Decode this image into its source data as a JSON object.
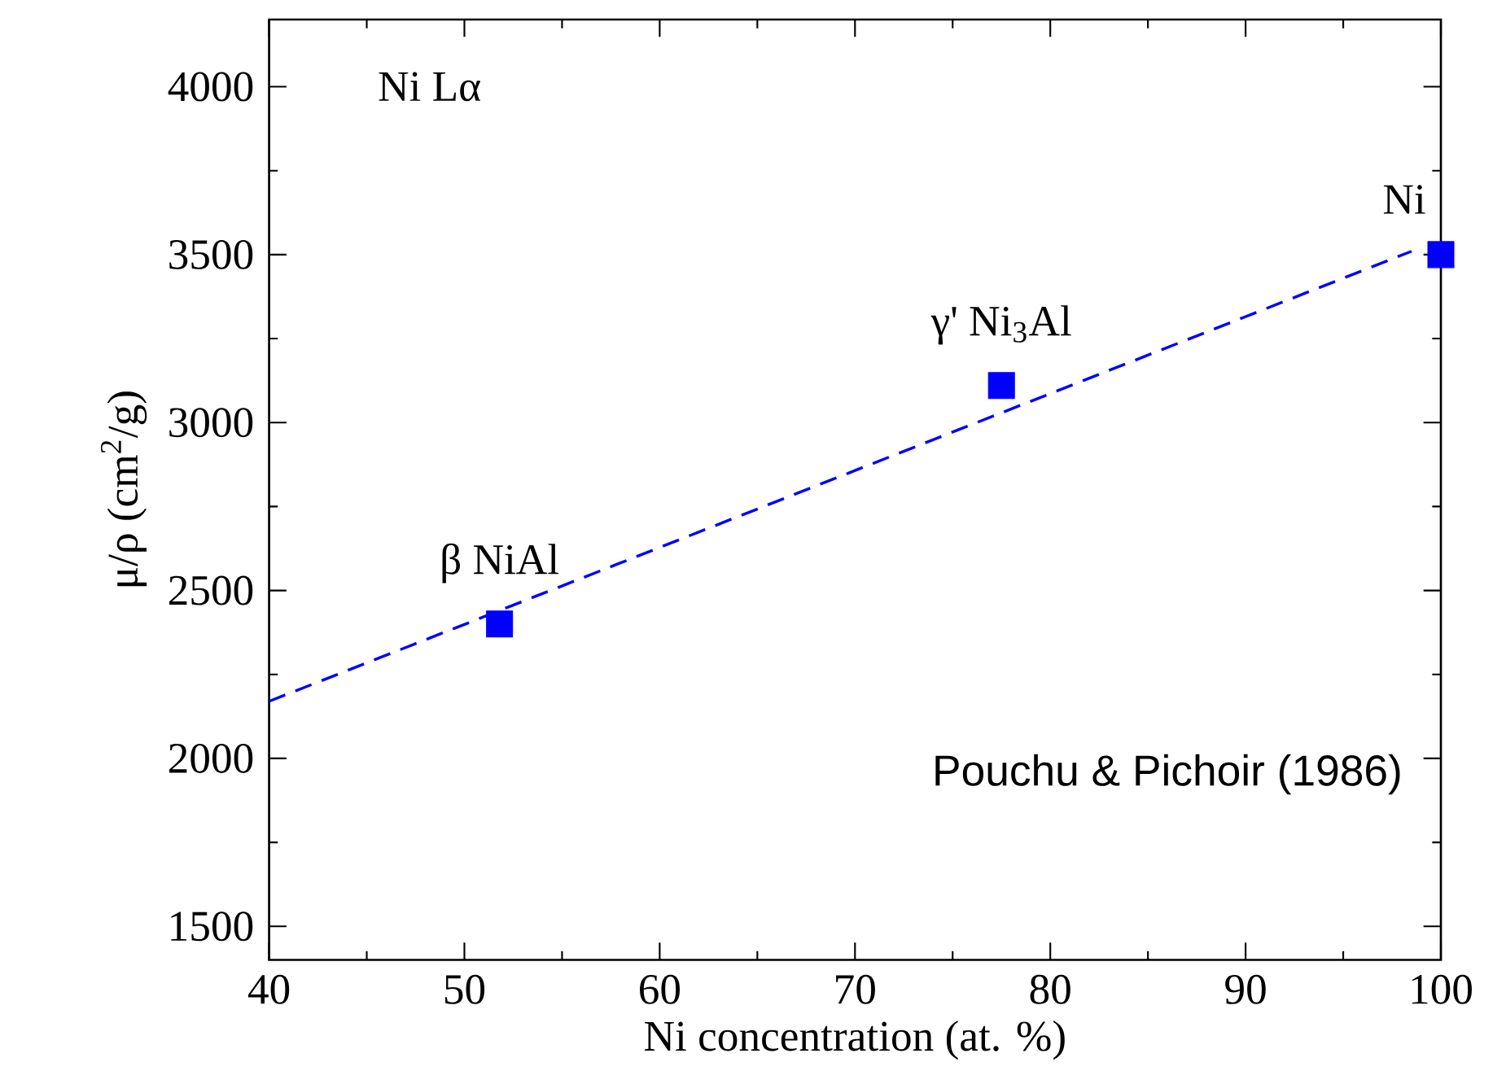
{
  "chart_data": {
    "type": "scatter",
    "xlabel": "Ni concentration (at. %)",
    "ylabel": "μ/ρ (cm$^{2}$/g)",
    "xlim": [
      40,
      100
    ],
    "ylim": [
      1400,
      4200
    ],
    "xticks": [
      40,
      50,
      60,
      70,
      80,
      90,
      100
    ],
    "yticks": [
      1500,
      2000,
      2500,
      3000,
      3500,
      4000
    ],
    "grid": false,
    "series": [
      {
        "color": "#0000ff",
        "marker": "square",
        "x": [
          51.8,
          77.5,
          100
        ],
        "values": [
          2400,
          3110,
          3500
        ]
      },
      {
        "type": "line",
        "color": "#0000ff",
        "line_style": "dashed",
        "x": [
          40,
          98.5
        ],
        "values": [
          2170,
          3510
        ]
      }
    ],
    "annotations": [
      "Ni Lα",
      {
        "text": "β NiAl",
        "x": 51.8,
        "y": 2400
      },
      {
        "text": "γ' Ni$_{3}$Al",
        "x": 77.5,
        "y": 3110
      },
      {
        "text": "Ni",
        "x": 100,
        "y": 3500
      },
      "Pouchu & Pichoir (1986)"
    ]
  }
}
